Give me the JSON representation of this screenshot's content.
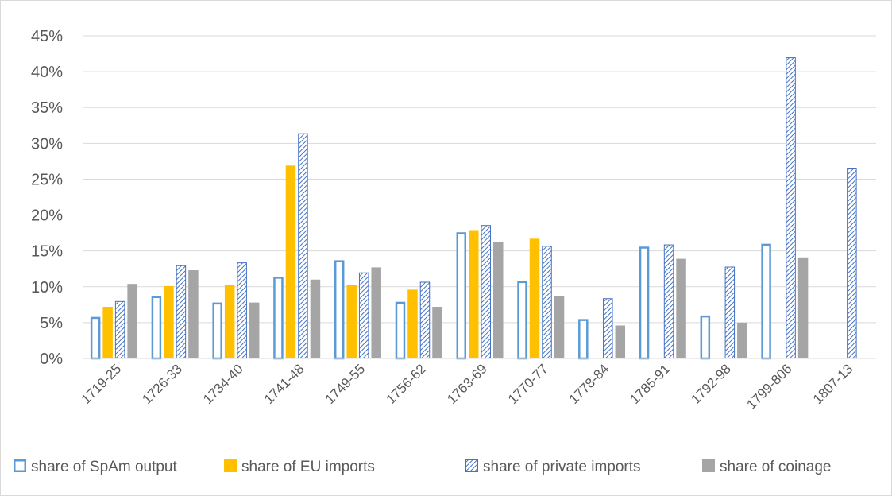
{
  "chart_data": {
    "type": "bar",
    "categories": [
      "1719-25",
      "1726-33",
      "1734-40",
      "1741-48",
      "1749-55",
      "1756-62",
      "1763-69",
      "1770-77",
      "1778-84",
      "1785-91",
      "1792-98",
      "1799-806",
      "1807-13"
    ],
    "series": [
      {
        "name": "share of SpAm output",
        "style": "outline",
        "color": "#5b9bd5",
        "values": [
          5.8,
          8.7,
          7.8,
          11.4,
          13.7,
          7.9,
          17.6,
          10.8,
          5.5,
          15.6,
          6.0,
          16.0,
          null
        ]
      },
      {
        "name": "share of EU imports",
        "style": "solid",
        "color": "#ffc000",
        "values": [
          7.2,
          10.1,
          10.2,
          26.9,
          10.3,
          9.6,
          17.9,
          16.7,
          null,
          null,
          null,
          null,
          null
        ]
      },
      {
        "name": "share of private imports",
        "style": "hatched",
        "color": "#4472c4",
        "values": [
          8.0,
          13.0,
          13.4,
          31.4,
          12.0,
          10.7,
          18.6,
          15.7,
          8.4,
          15.9,
          12.8,
          42.0,
          26.6
        ]
      },
      {
        "name": "share of coinage",
        "style": "solid",
        "color": "#a5a5a5",
        "values": [
          10.4,
          12.3,
          7.8,
          11.0,
          12.7,
          7.2,
          16.2,
          8.7,
          4.6,
          13.9,
          5.0,
          14.1,
          null
        ]
      }
    ],
    "ylim": [
      0,
      45
    ],
    "yticks": [
      "0%",
      "5%",
      "10%",
      "15%",
      "20%",
      "25%",
      "30%",
      "35%",
      "40%",
      "45%"
    ],
    "grid": true,
    "legend_position": "bottom",
    "title": "",
    "xlabel": "",
    "ylabel": ""
  }
}
